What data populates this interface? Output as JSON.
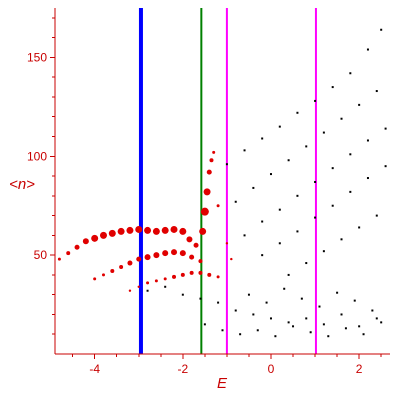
{
  "chart_data": {
    "type": "scatter",
    "title": "",
    "xlabel": "E",
    "ylabel": "<n>",
    "xlim": [
      -4.9,
      2.7
    ],
    "ylim": [
      0,
      175
    ],
    "grid": false,
    "legend": "none",
    "colors": {
      "axes": "#c80000",
      "red_points": "#e00000",
      "black_points": "#000000",
      "line_blue": "#0000ff",
      "line_green": "#008000",
      "line_magenta": "#ff00ff"
    },
    "x_ticks": [
      {
        "value": -4,
        "label": "-4"
      },
      {
        "value": -2,
        "label": "-2"
      },
      {
        "value": 0,
        "label": "0"
      },
      {
        "value": 2,
        "label": "2"
      }
    ],
    "y_ticks": [
      {
        "value": 50,
        "label": "50"
      },
      {
        "value": 100,
        "label": "100"
      },
      {
        "value": 150,
        "label": "150"
      }
    ],
    "vertical_lines": [
      {
        "x": -2.95,
        "color": "#0000ff"
      },
      {
        "x": -1.58,
        "color": "#008000"
      },
      {
        "x": -1.0,
        "color": "#ff00ff"
      },
      {
        "x": 1.02,
        "color": "#ff00ff"
      }
    ],
    "series": [
      {
        "color": "#e00000",
        "marker": "circle",
        "points": [
          [
            -4.8,
            48,
            1.5
          ],
          [
            -4.6,
            51,
            2
          ],
          [
            -4.4,
            54,
            2.5
          ],
          [
            -4.2,
            57,
            3
          ],
          [
            -4.0,
            58.5,
            3.5
          ],
          [
            -3.8,
            60,
            3.5
          ],
          [
            -3.6,
            61,
            3.5
          ],
          [
            -3.4,
            62,
            3.5
          ],
          [
            -3.2,
            62.5,
            3.5
          ],
          [
            -3.0,
            63,
            3.5
          ],
          [
            -2.8,
            62.5,
            3.5
          ],
          [
            -2.6,
            62,
            3.5
          ],
          [
            -2.4,
            62.5,
            3.5
          ],
          [
            -2.2,
            63,
            3.5
          ],
          [
            -2.0,
            62,
            3.5
          ],
          [
            -1.85,
            58,
            3
          ],
          [
            -1.7,
            55,
            2.5
          ]
        ]
      },
      {
        "color": "#e00000",
        "marker": "circle",
        "points": [
          [
            -4.0,
            38,
            1.5
          ],
          [
            -3.8,
            40,
            1.5
          ],
          [
            -3.6,
            42,
            2
          ],
          [
            -3.4,
            44,
            2
          ],
          [
            -3.2,
            46,
            2.5
          ],
          [
            -3.0,
            48,
            2.5
          ],
          [
            -2.8,
            49,
            3
          ],
          [
            -2.6,
            50,
            3
          ],
          [
            -2.4,
            51,
            3
          ],
          [
            -2.2,
            51.5,
            3
          ],
          [
            -2.0,
            51,
            3
          ],
          [
            -1.8,
            49,
            2.5
          ],
          [
            -1.6,
            47,
            2
          ]
        ]
      },
      {
        "color": "#e00000",
        "marker": "circle",
        "points": [
          [
            -3.2,
            32,
            1.2
          ],
          [
            -3.0,
            34,
            1.2
          ],
          [
            -2.8,
            36,
            1.5
          ],
          [
            -2.6,
            37,
            1.5
          ],
          [
            -2.4,
            38,
            1.5
          ],
          [
            -2.2,
            39,
            2
          ],
          [
            -2.0,
            40,
            2
          ],
          [
            -1.8,
            41,
            2
          ],
          [
            -1.6,
            41,
            2
          ],
          [
            -1.4,
            40,
            2
          ],
          [
            -1.2,
            39,
            1.5
          ]
        ]
      },
      {
        "color": "#e00000",
        "marker": "circle",
        "points": [
          [
            -1.55,
            62,
            3.5
          ],
          [
            -1.5,
            72,
            4
          ],
          [
            -1.45,
            82,
            3.5
          ],
          [
            -1.4,
            92,
            2.5
          ],
          [
            -1.35,
            98,
            2
          ],
          [
            -1.3,
            102,
            1.5
          ],
          [
            -1.2,
            75,
            1.5
          ],
          [
            -1.0,
            56,
            1.2
          ],
          [
            -0.9,
            48,
            1.2
          ]
        ]
      },
      {
        "color": "#000000",
        "marker": "dot",
        "points": [
          [
            -1.0,
            96,
            1
          ],
          [
            -0.6,
            103,
            1
          ],
          [
            -0.2,
            109,
            1
          ],
          [
            0.2,
            115,
            1
          ],
          [
            0.6,
            122,
            1
          ],
          [
            1.0,
            128,
            1
          ],
          [
            1.4,
            135,
            1
          ],
          [
            1.8,
            142,
            1
          ],
          [
            2.2,
            154,
            1
          ],
          [
            2.5,
            164,
            1
          ],
          [
            -0.8,
            77,
            1
          ],
          [
            -0.4,
            84,
            1
          ],
          [
            0.0,
            91,
            1
          ],
          [
            0.4,
            98,
            1
          ],
          [
            0.8,
            105,
            1
          ],
          [
            1.2,
            112,
            1
          ],
          [
            1.6,
            119,
            1
          ],
          [
            2.0,
            126,
            1
          ],
          [
            2.4,
            133,
            1
          ],
          [
            -0.6,
            60,
            1
          ],
          [
            -0.2,
            67,
            1
          ],
          [
            0.2,
            73,
            1
          ],
          [
            0.6,
            80,
            1
          ],
          [
            1.0,
            87,
            1
          ],
          [
            1.4,
            94,
            1
          ],
          [
            1.8,
            101,
            1
          ],
          [
            2.2,
            108,
            1
          ],
          [
            2.6,
            114,
            1
          ],
          [
            -0.2,
            50,
            1
          ],
          [
            0.2,
            56,
            1
          ],
          [
            0.6,
            62,
            1
          ],
          [
            1.0,
            69,
            1
          ],
          [
            1.4,
            75,
            1
          ],
          [
            1.8,
            82,
            1
          ],
          [
            2.2,
            89,
            1
          ],
          [
            2.6,
            95,
            1
          ],
          [
            0.4,
            40,
            1
          ],
          [
            0.8,
            46,
            1
          ],
          [
            1.2,
            52,
            1
          ],
          [
            1.6,
            58,
            1
          ],
          [
            2.0,
            64,
            1
          ],
          [
            2.4,
            70,
            1
          ],
          [
            -2.8,
            32,
            1
          ],
          [
            -2.4,
            34,
            1
          ],
          [
            -2.0,
            30,
            1
          ],
          [
            -1.6,
            28,
            1
          ],
          [
            -1.2,
            26,
            1
          ],
          [
            -0.8,
            22,
            1
          ],
          [
            -0.4,
            20,
            1
          ],
          [
            0.0,
            18,
            1
          ],
          [
            0.4,
            16,
            1
          ],
          [
            0.8,
            18,
            1
          ],
          [
            1.2,
            15,
            1
          ],
          [
            1.6,
            20,
            1
          ],
          [
            2.0,
            14,
            1
          ],
          [
            2.4,
            18,
            1
          ],
          [
            -1.5,
            15,
            1
          ],
          [
            -1.1,
            12,
            1
          ],
          [
            -0.7,
            10,
            1
          ],
          [
            -0.3,
            12,
            1
          ],
          [
            0.1,
            9,
            1
          ],
          [
            0.5,
            14,
            1
          ],
          [
            0.9,
            11,
            1
          ],
          [
            1.3,
            9,
            1
          ],
          [
            1.7,
            13,
            1
          ],
          [
            2.1,
            10,
            1
          ],
          [
            2.5,
            16,
            1
          ],
          [
            -0.5,
            30,
            1
          ],
          [
            -0.1,
            26,
            1
          ],
          [
            0.3,
            33,
            1
          ],
          [
            0.7,
            28,
            1
          ],
          [
            1.1,
            24,
            1
          ],
          [
            1.5,
            31,
            1
          ],
          [
            1.9,
            27,
            1
          ],
          [
            2.3,
            22,
            1
          ]
        ]
      }
    ]
  }
}
